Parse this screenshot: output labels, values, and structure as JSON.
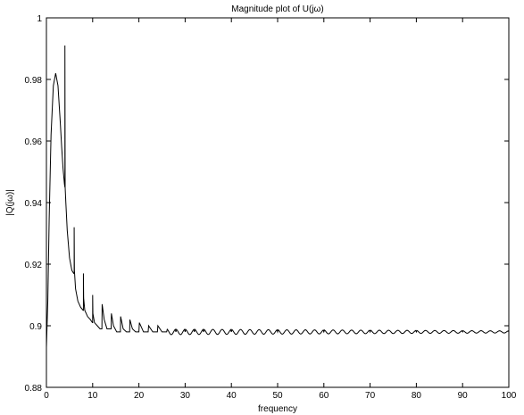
{
  "chart_data": {
    "type": "line",
    "title": "Magnitude plot of U(jω)",
    "xlabel": "frequency",
    "ylabel": "|Q(jω)|",
    "xlim": [
      0,
      100
    ],
    "ylim": [
      0.88,
      1.0
    ],
    "xticks": [
      0,
      10,
      20,
      30,
      40,
      50,
      60,
      70,
      80,
      90,
      100
    ],
    "yticks": [
      0.88,
      0.9,
      0.92,
      0.94,
      0.96,
      0.98,
      1.0
    ],
    "xtick_labels": [
      "0",
      "10",
      "20",
      "30",
      "40",
      "50",
      "60",
      "70",
      "80",
      "90",
      "100"
    ],
    "ytick_labels": [
      "0.88",
      "0.9",
      "0.92",
      "0.94",
      "0.96",
      "0.98",
      "1"
    ],
    "grid": false,
    "series": [
      {
        "color": "#000000",
        "x": [
          0,
          0.3,
          0.6,
          1.0,
          1.5,
          2.0,
          2.5,
          3.0,
          3.3,
          3.6,
          3.9,
          4.0,
          4.0,
          4.05,
          4.2,
          4.5,
          5.0,
          5.5,
          5.9,
          6.0,
          6.0,
          6.05,
          6.3,
          6.8,
          7.4,
          7.95,
          8.0,
          8.0,
          8.05,
          8.3,
          8.9,
          9.5,
          9.95,
          10.0,
          10.0,
          10.05,
          10.4,
          11.0,
          11.6,
          12.0,
          12.05,
          12.5,
          13.1,
          13.7,
          14.0,
          14.05,
          14.5,
          15.2,
          16.0,
          16.05,
          16.6,
          17.3,
          18.0,
          18.05,
          18.6,
          19.3,
          20.0,
          20.1,
          21.0,
          22.0,
          22.1,
          23.0,
          24.0,
          24.1,
          25.0,
          26.0,
          28.0,
          30.0,
          32.0,
          34.0,
          40.0,
          50.0,
          60.0,
          70.0,
          80.0,
          90.0,
          100.0
        ],
        "y": [
          0.893,
          0.908,
          0.935,
          0.962,
          0.978,
          0.982,
          0.978,
          0.966,
          0.958,
          0.951,
          0.946,
          0.945,
          0.991,
          0.945,
          0.94,
          0.931,
          0.922,
          0.918,
          0.917,
          0.917,
          0.932,
          0.918,
          0.912,
          0.908,
          0.906,
          0.905,
          0.905,
          0.917,
          0.909,
          0.905,
          0.903,
          0.902,
          0.901,
          0.901,
          0.91,
          0.904,
          0.901,
          0.9,
          0.899,
          0.899,
          0.907,
          0.902,
          0.899,
          0.899,
          0.899,
          0.904,
          0.9,
          0.898,
          0.898,
          0.903,
          0.899,
          0.898,
          0.898,
          0.902,
          0.899,
          0.898,
          0.898,
          0.901,
          0.898,
          0.898,
          0.9,
          0.898,
          0.898,
          0.9,
          0.898,
          0.898,
          0.898,
          0.898,
          0.898,
          0.898,
          0.898,
          0.898,
          0.898,
          0.898,
          0.898,
          0.898,
          0.898
        ]
      }
    ]
  }
}
